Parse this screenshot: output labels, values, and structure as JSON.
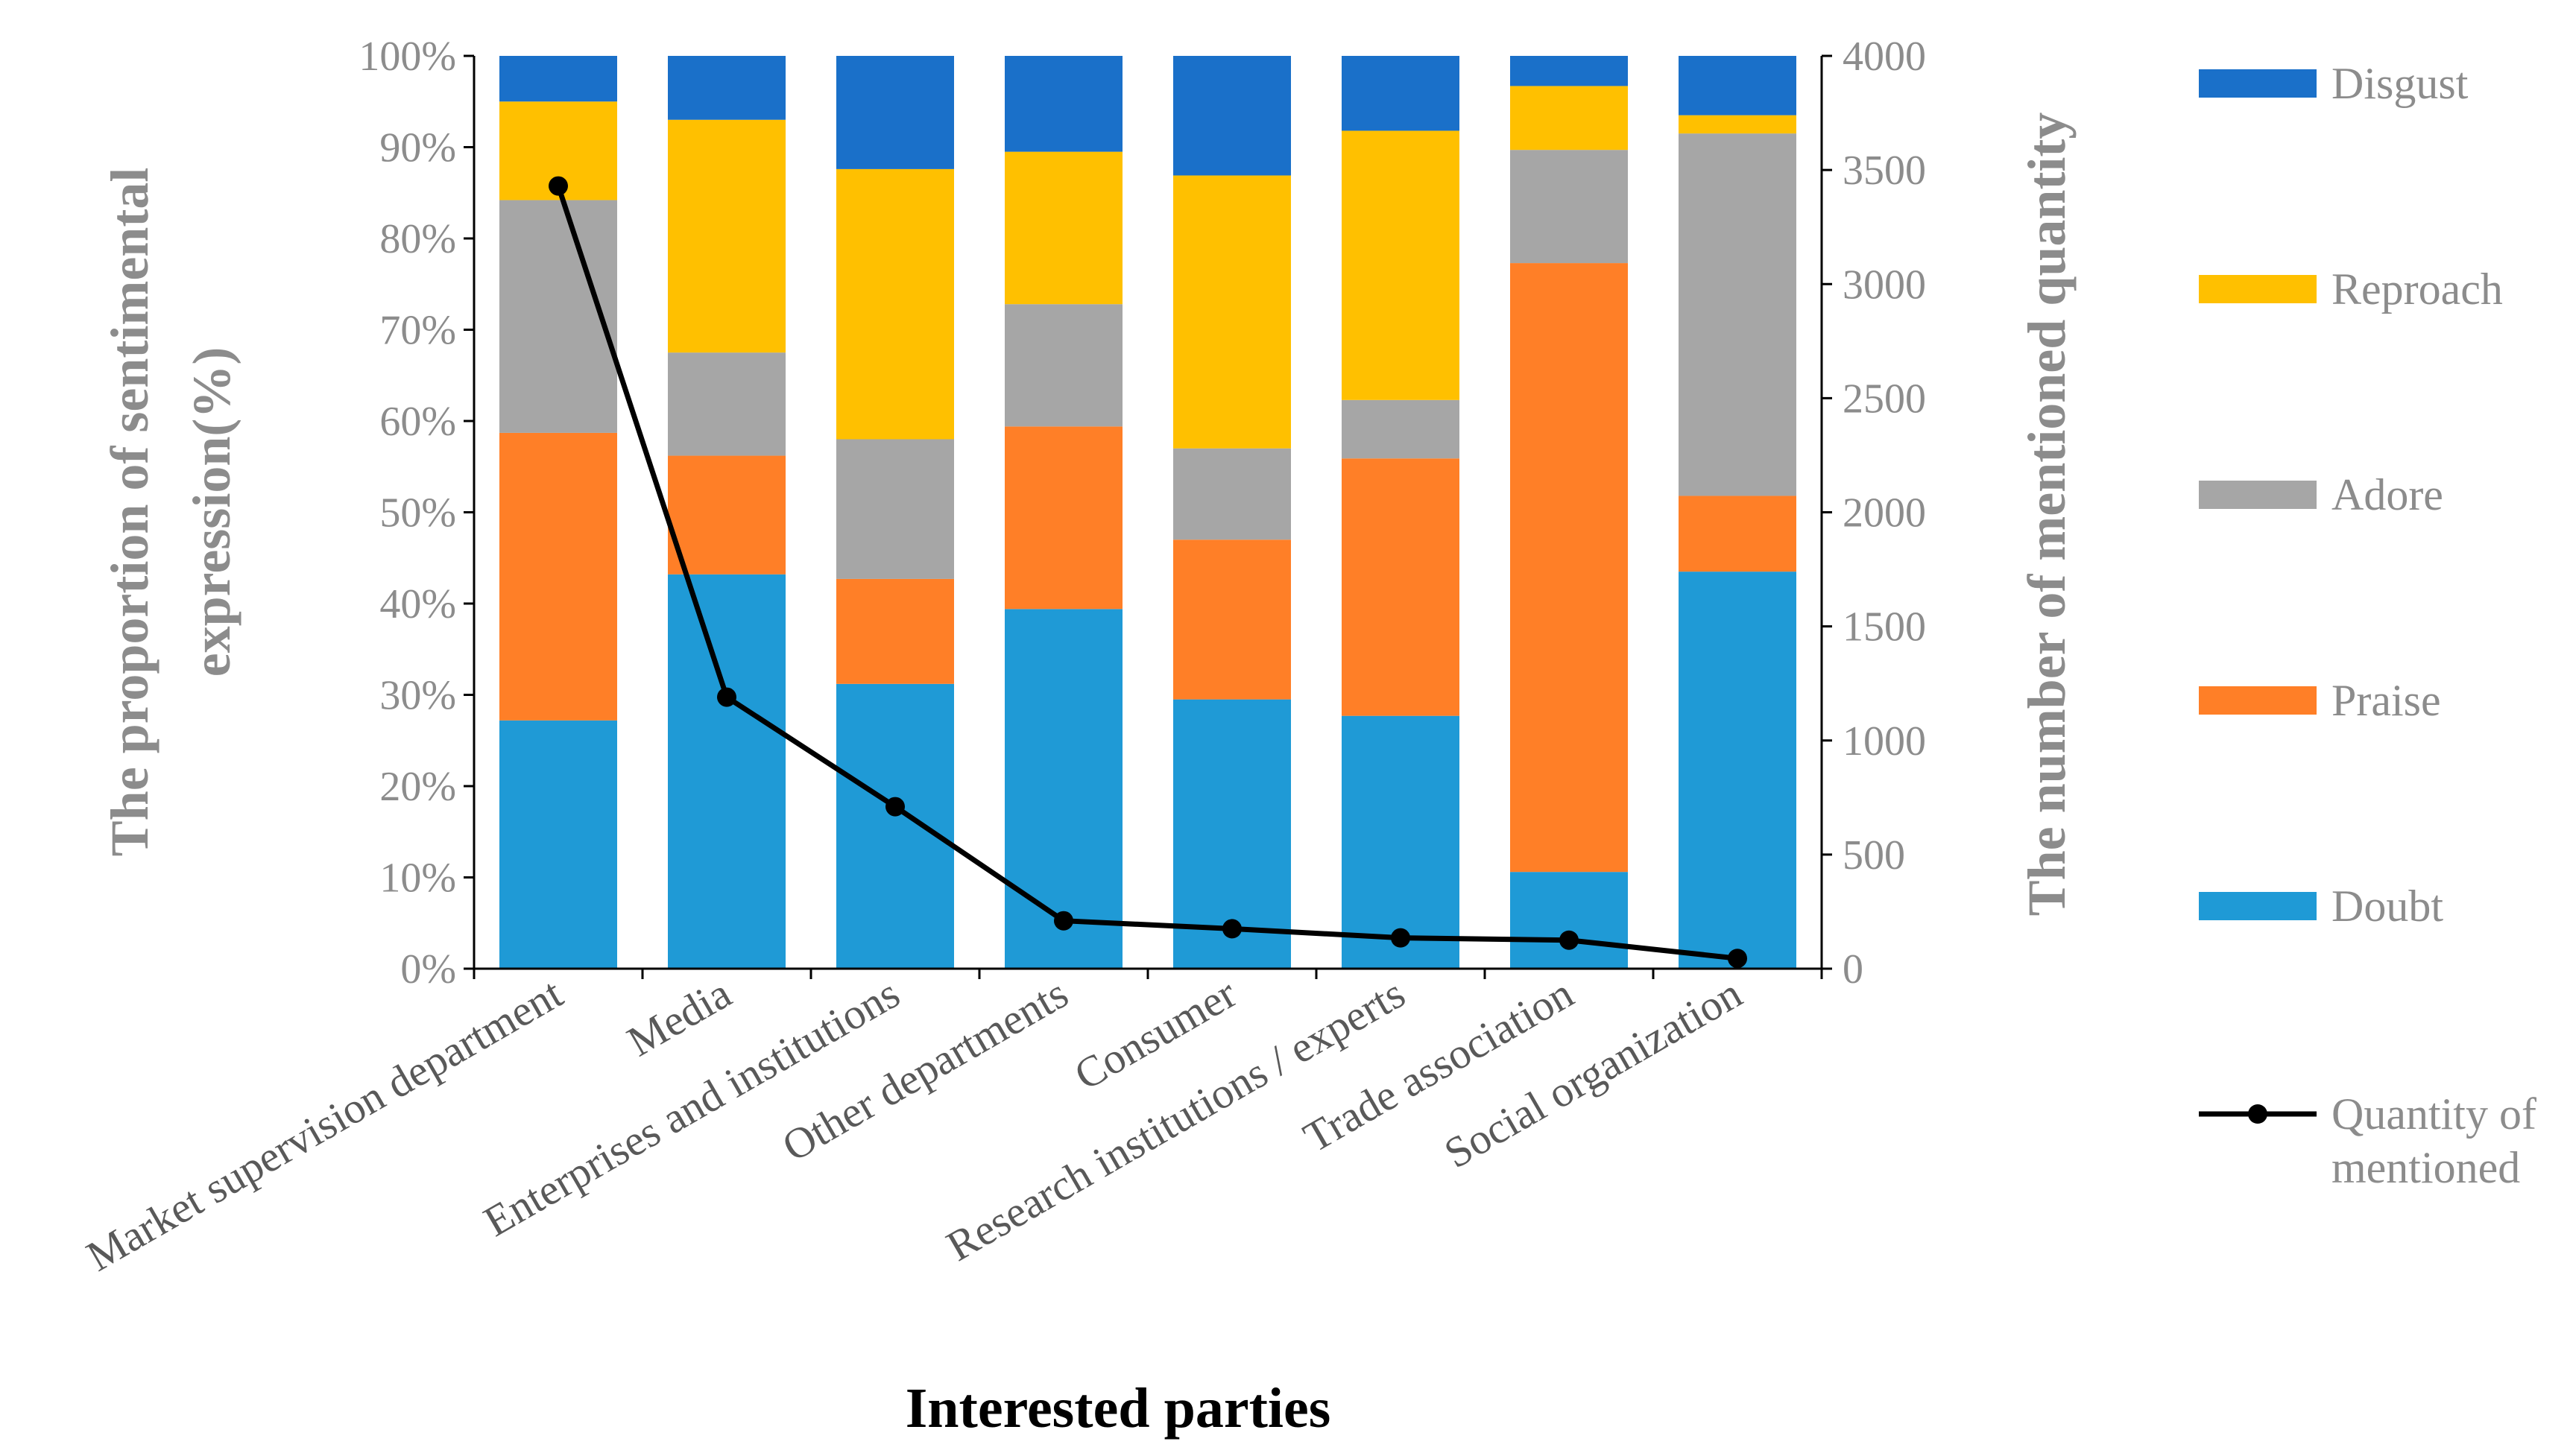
{
  "chart_data": {
    "type": "bar",
    "stacked": true,
    "categories": [
      "Market supervision department",
      "Media",
      "Enterprises and institutions",
      "Other departments",
      "Consumer",
      "Research institutions / experts",
      "Trade association",
      "Social organization"
    ],
    "series": [
      {
        "name": "Doubt",
        "color": "#1f9ad6",
        "values": [
          27.2,
          43.2,
          31.2,
          39.4,
          29.5,
          27.7,
          10.6,
          43.5
        ]
      },
      {
        "name": "Praise",
        "color": "#ff7f27",
        "values": [
          31.5,
          13.0,
          11.5,
          20.0,
          17.5,
          28.2,
          66.7,
          8.3
        ]
      },
      {
        "name": "Adore",
        "color": "#a6a6a6",
        "values": [
          25.5,
          11.3,
          15.3,
          13.4,
          10.0,
          6.4,
          12.4,
          39.7
        ]
      },
      {
        "name": "Reproach",
        "color": "#ffc000",
        "values": [
          10.8,
          25.5,
          29.6,
          16.7,
          29.9,
          29.5,
          7.0,
          2.0
        ]
      },
      {
        "name": "Disgust",
        "color": "#1a70c9",
        "values": [
          5.0,
          7.0,
          12.4,
          10.5,
          13.1,
          8.2,
          3.3,
          6.5
        ]
      }
    ],
    "line_series": {
      "name": "Quantity of mentioned",
      "name_lines": [
        "Quantity of",
        "mentioned"
      ],
      "color": "#000000",
      "values": [
        3430,
        1190,
        710,
        210,
        175,
        135,
        125,
        45
      ]
    },
    "y_left": {
      "label_lines": [
        "The proportion of sentimental",
        "expression(%)"
      ],
      "ylim": [
        0,
        100
      ],
      "tick_labels": [
        "0%",
        "10%",
        "20%",
        "30%",
        "40%",
        "50%",
        "60%",
        "70%",
        "80%",
        "90%",
        "100%"
      ]
    },
    "y_right": {
      "label": "The number of mentioned quantity",
      "ylim": [
        0,
        4000
      ],
      "tick_labels": [
        "0",
        "500",
        "1000",
        "1500",
        "2000",
        "2500",
        "3000",
        "3500",
        "4000"
      ]
    },
    "xlabel": "Interested parties",
    "legend_order": [
      "Disgust",
      "Reproach",
      "Adore",
      "Praise",
      "Doubt",
      "Quantity of mentioned"
    ],
    "legend_position": "right",
    "grid": false
  }
}
